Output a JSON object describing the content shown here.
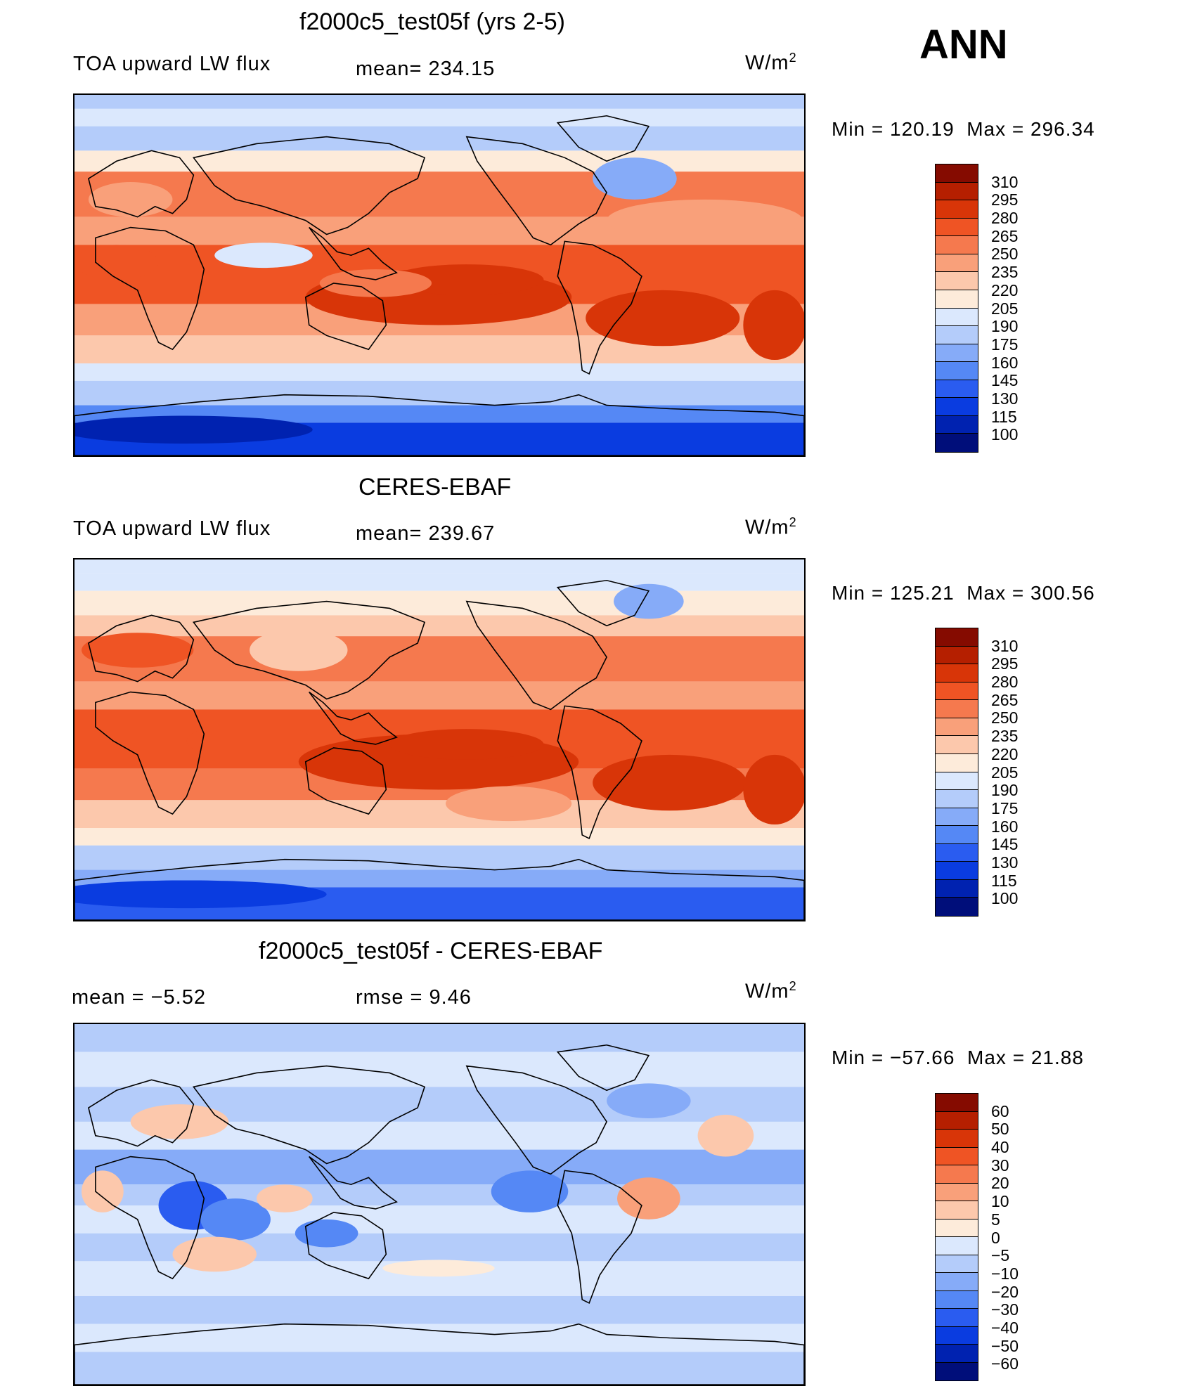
{
  "season": "ANN",
  "colors": {
    "abs": [
      "#000e7a",
      "#0022b0",
      "#0a3ce0",
      "#2a5cf0",
      "#5588f5",
      "#86abf8",
      "#b4ccfa",
      "#dbe8fd",
      "#fdebda",
      "#fcc8ac",
      "#f9a07a",
      "#f5794e",
      "#ef5424",
      "#d83508",
      "#b51f00",
      "#850b00"
    ],
    "diff": [
      "#000e7a",
      "#0022b0",
      "#0a3ce0",
      "#2a5cf0",
      "#5588f5",
      "#86abf8",
      "#b4ccfa",
      "#dbe8fd",
      "#fdebda",
      "#fcc8ac",
      "#f9a07a",
      "#f5794e",
      "#ef5424",
      "#d83508",
      "#b51f00",
      "#850b00"
    ]
  },
  "panels": [
    {
      "title": "f2000c5_test05f (yrs 2-5)",
      "left_label": "TOA upward LW flux",
      "mean_label": "mean=  234.15",
      "units": "W/m",
      "units_sup": "2",
      "min_label": "Min  =  120.19",
      "max_label": "Max  =  296.34",
      "levels": [
        "310",
        "295",
        "280",
        "265",
        "250",
        "235",
        "220",
        "205",
        "190",
        "175",
        "160",
        "145",
        "130",
        "115",
        "100"
      ],
      "variant": "model"
    },
    {
      "title": "CERES-EBAF",
      "left_label": "TOA upward LW flux",
      "mean_label": "mean=  239.67",
      "units": "W/m",
      "units_sup": "2",
      "min_label": "Min  =  125.21",
      "max_label": "Max  =  300.56",
      "levels": [
        "310",
        "295",
        "280",
        "265",
        "250",
        "235",
        "220",
        "205",
        "190",
        "175",
        "160",
        "145",
        "130",
        "115",
        "100"
      ],
      "variant": "obs"
    },
    {
      "title": "f2000c5_test05f - CERES-EBAF",
      "left_label": "mean  =    −5.52",
      "mean_label": "rmse  =     9.46",
      "units": "W/m",
      "units_sup": "2",
      "min_label": "Min  =  −57.66",
      "max_label": "Max  =   21.88",
      "levels": [
        "60",
        "50",
        "40",
        "30",
        "20",
        "10",
        "5",
        "0",
        "−5",
        "−10",
        "−20",
        "−30",
        "−40",
        "−50",
        "−60"
      ],
      "variant": "diff"
    }
  ]
}
